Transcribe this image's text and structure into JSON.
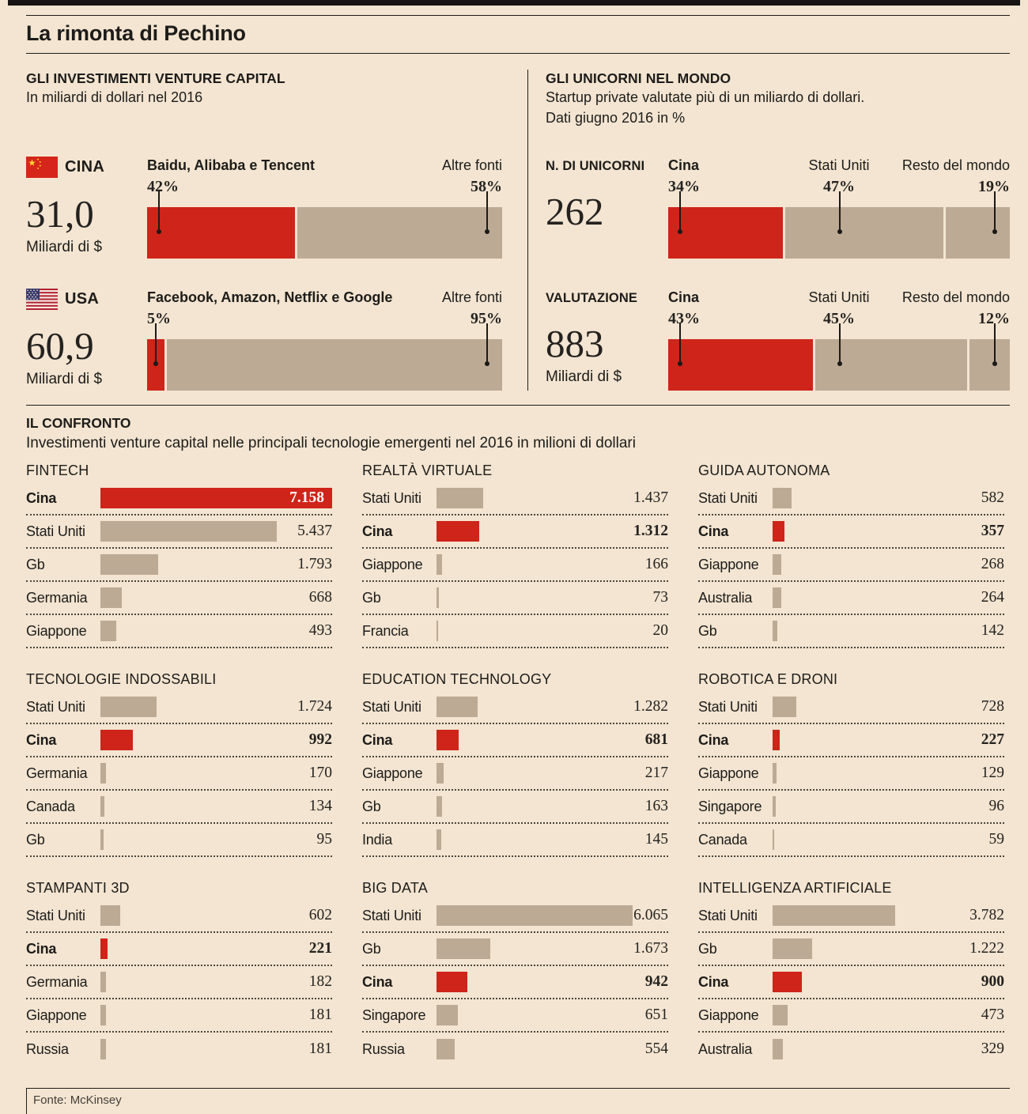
{
  "header": {
    "title": "La rimonta di Pechino"
  },
  "vc_panel": {
    "heading": "GLI INVESTIMENTI VENTURE CAPITAL",
    "subheading": "In miliardi di dollari nel 2016",
    "rows": [
      {
        "country": "CINA",
        "flag": "china-flag",
        "big": "31,0",
        "unit": "Miliardi di $",
        "seg1_name": "Baidu, Alibaba e Tencent",
        "seg1_pct": "42%",
        "seg1_num": 42,
        "seg2_name": "Altre fonti",
        "seg2_pct": "58%",
        "seg2_num": 58
      },
      {
        "country": "USA",
        "flag": "usa-flag",
        "big": "60,9",
        "unit": "Miliardi di $",
        "seg1_name": "Facebook, Amazon, Netflix e Google",
        "seg1_pct": "5%",
        "seg1_num": 5,
        "seg2_name": "Altre fonti",
        "seg2_pct": "95%",
        "seg2_num": 95
      }
    ]
  },
  "unicorn_panel": {
    "heading": "GLI UNICORNI NEL MONDO",
    "subheading1": "Startup private valutate più di un miliardo di dollari.",
    "subheading2": "Dati giugno 2016 in %",
    "rows": [
      {
        "caption": "N. DI UNICORNI",
        "big": "262",
        "unit": "",
        "seg1_name": "Cina",
        "seg1_pct": "34%",
        "seg1_num": 34,
        "seg2_name": "Stati Uniti",
        "seg2_pct": "47%",
        "seg2_num": 47,
        "seg3_name": "Resto del mondo",
        "seg3_pct": "19%",
        "seg3_num": 19
      },
      {
        "caption": "VALUTAZIONE",
        "big": "883",
        "unit": "Miliardi di $",
        "seg1_name": "Cina",
        "seg1_pct": "43%",
        "seg1_num": 43,
        "seg2_name": "Stati Uniti",
        "seg2_pct": "45%",
        "seg2_num": 45,
        "seg3_name": "Resto del mondo",
        "seg3_pct": "12%",
        "seg3_num": 12
      }
    ]
  },
  "confronto": {
    "heading": "IL CONFRONTO",
    "subheading": "Investimenti venture capital nelle principali tecnologie emergenti nel 2016 in milioni di dollari",
    "max_value": 7158,
    "charts": [
      {
        "title": "FINTECH",
        "rows": [
          {
            "label": "Cina",
            "value": "7.158",
            "num": 7158,
            "cina": true,
            "inside": true
          },
          {
            "label": "Stati Uniti",
            "value": "5.437",
            "num": 5437
          },
          {
            "label": "Gb",
            "value": "1.793",
            "num": 1793
          },
          {
            "label": "Germania",
            "value": "668",
            "num": 668
          },
          {
            "label": "Giappone",
            "value": "493",
            "num": 493
          }
        ]
      },
      {
        "title": "REALTÀ VIRTUALE",
        "rows": [
          {
            "label": "Stati Uniti",
            "value": "1.437",
            "num": 1437
          },
          {
            "label": "Cina",
            "value": "1.312",
            "num": 1312,
            "cina": true
          },
          {
            "label": "Giappone",
            "value": "166",
            "num": 166
          },
          {
            "label": "Gb",
            "value": "73",
            "num": 73
          },
          {
            "label": "Francia",
            "value": "20",
            "num": 20
          }
        ]
      },
      {
        "title": "GUIDA AUTONOMA",
        "rows": [
          {
            "label": "Stati Uniti",
            "value": "582",
            "num": 582
          },
          {
            "label": "Cina",
            "value": "357",
            "num": 357,
            "cina": true
          },
          {
            "label": "Giappone",
            "value": "268",
            "num": 268
          },
          {
            "label": "Australia",
            "value": "264",
            "num": 264
          },
          {
            "label": "Gb",
            "value": "142",
            "num": 142
          }
        ]
      },
      {
        "title": "TECNOLOGIE INDOSSABILI",
        "rows": [
          {
            "label": "Stati Uniti",
            "value": "1.724",
            "num": 1724
          },
          {
            "label": "Cina",
            "value": "992",
            "num": 992,
            "cina": true
          },
          {
            "label": "Germania",
            "value": "170",
            "num": 170
          },
          {
            "label": "Canada",
            "value": "134",
            "num": 134
          },
          {
            "label": "Gb",
            "value": "95",
            "num": 95
          }
        ]
      },
      {
        "title": "EDUCATION TECHNOLOGY",
        "rows": [
          {
            "label": "Stati Uniti",
            "value": "1.282",
            "num": 1282
          },
          {
            "label": "Cina",
            "value": "681",
            "num": 681,
            "cina": true
          },
          {
            "label": "Giappone",
            "value": "217",
            "num": 217
          },
          {
            "label": "Gb",
            "value": "163",
            "num": 163
          },
          {
            "label": "India",
            "value": "145",
            "num": 145
          }
        ]
      },
      {
        "title": "ROBOTICA E DRONI",
        "rows": [
          {
            "label": "Stati Uniti",
            "value": "728",
            "num": 728
          },
          {
            "label": "Cina",
            "value": "227",
            "num": 227,
            "cina": true
          },
          {
            "label": "Giappone",
            "value": "129",
            "num": 129
          },
          {
            "label": "Singapore",
            "value": "96",
            "num": 96
          },
          {
            "label": "Canada",
            "value": "59",
            "num": 59
          }
        ]
      },
      {
        "title": "STAMPANTI 3D",
        "rows": [
          {
            "label": "Stati Uniti",
            "value": "602",
            "num": 602
          },
          {
            "label": "Cina",
            "value": "221",
            "num": 221,
            "cina": true
          },
          {
            "label": "Germania",
            "value": "182",
            "num": 182
          },
          {
            "label": "Giappone",
            "value": "181",
            "num": 181
          },
          {
            "label": "Russia",
            "value": "181",
            "num": 181
          }
        ]
      },
      {
        "title": "BIG DATA",
        "rows": [
          {
            "label": "Stati Uniti",
            "value": "6.065",
            "num": 6065
          },
          {
            "label": "Gb",
            "value": "1.673",
            "num": 1673
          },
          {
            "label": "Cina",
            "value": "942",
            "num": 942,
            "cina": true
          },
          {
            "label": "Singapore",
            "value": "651",
            "num": 651
          },
          {
            "label": "Russia",
            "value": "554",
            "num": 554
          }
        ]
      },
      {
        "title": "INTELLIGENZA ARTIFICIALE",
        "rows": [
          {
            "label": "Stati Uniti",
            "value": "3.782",
            "num": 3782
          },
          {
            "label": "Gb",
            "value": "1.222",
            "num": 1222
          },
          {
            "label": "Cina",
            "value": "900",
            "num": 900,
            "cina": true
          },
          {
            "label": "Giappone",
            "value": "473",
            "num": 473
          },
          {
            "label": "Australia",
            "value": "329",
            "num": 329
          }
        ]
      }
    ]
  },
  "footer": {
    "source": "Fonte: McKinsey"
  },
  "colors": {
    "red": "#cf241a",
    "tan": "#bcaa94",
    "background": "#f3e5d1"
  },
  "chart_data": [
    {
      "type": "bar",
      "title": "GLI INVESTIMENTI VENTURE CAPITAL",
      "subtitle": "In miliardi di dollari nel 2016",
      "rows": [
        {
          "country": "CINA",
          "total_miliardi_dollari": 31.0,
          "segments": [
            {
              "label": "Baidu, Alibaba e Tencent",
              "pct": 42
            },
            {
              "label": "Altre fonti",
              "pct": 58
            }
          ]
        },
        {
          "country": "USA",
          "total_miliardi_dollari": 60.9,
          "segments": [
            {
              "label": "Facebook, Amazon, Netflix e Google",
              "pct": 5
            },
            {
              "label": "Altre fonti",
              "pct": 95
            }
          ]
        }
      ]
    },
    {
      "type": "bar",
      "title": "GLI UNICORNI NEL MONDO",
      "subtitle": "Startup private valutate più di un miliardo di dollari. Dati giugno 2016 in %",
      "rows": [
        {
          "label": "N. DI UNICORNI",
          "total": 262,
          "segments": [
            {
              "label": "Cina",
              "pct": 34
            },
            {
              "label": "Stati Uniti",
              "pct": 47
            },
            {
              "label": "Resto del mondo",
              "pct": 19
            }
          ]
        },
        {
          "label": "VALUTAZIONE",
          "total": 883,
          "unit": "Miliardi di $",
          "segments": [
            {
              "label": "Cina",
              "pct": 43
            },
            {
              "label": "Stati Uniti",
              "pct": 45
            },
            {
              "label": "Resto del mondo",
              "pct": 12
            }
          ]
        }
      ]
    },
    {
      "type": "bar",
      "title": "IL CONFRONTO",
      "subtitle": "Investimenti venture capital nelle principali tecnologie emergenti nel 2016 in milioni di dollari",
      "charts": [
        {
          "title": "FINTECH",
          "categories": [
            "Cina",
            "Stati Uniti",
            "Gb",
            "Germania",
            "Giappone"
          ],
          "values": [
            7158,
            5437,
            1793,
            668,
            493
          ]
        },
        {
          "title": "REALTÀ VIRTUALE",
          "categories": [
            "Stati Uniti",
            "Cina",
            "Giappone",
            "Gb",
            "Francia"
          ],
          "values": [
            1437,
            1312,
            166,
            73,
            20
          ]
        },
        {
          "title": "GUIDA AUTONOMA",
          "categories": [
            "Stati Uniti",
            "Cina",
            "Giappone",
            "Australia",
            "Gb"
          ],
          "values": [
            582,
            357,
            268,
            264,
            142
          ]
        },
        {
          "title": "TECNOLOGIE INDOSSABILI",
          "categories": [
            "Stati Uniti",
            "Cina",
            "Germania",
            "Canada",
            "Gb"
          ],
          "values": [
            1724,
            992,
            170,
            134,
            95
          ]
        },
        {
          "title": "EDUCATION TECHNOLOGY",
          "categories": [
            "Stati Uniti",
            "Cina",
            "Giappone",
            "Gb",
            "India"
          ],
          "values": [
            1282,
            681,
            217,
            163,
            145
          ]
        },
        {
          "title": "ROBOTICA E DRONI",
          "categories": [
            "Stati Uniti",
            "Cina",
            "Giappone",
            "Singapore",
            "Canada"
          ],
          "values": [
            728,
            227,
            129,
            96,
            59
          ]
        },
        {
          "title": "STAMPANTI 3D",
          "categories": [
            "Stati Uniti",
            "Cina",
            "Germania",
            "Giappone",
            "Russia"
          ],
          "values": [
            602,
            221,
            182,
            181,
            181
          ]
        },
        {
          "title": "BIG DATA",
          "categories": [
            "Stati Uniti",
            "Gb",
            "Cina",
            "Singapore",
            "Russia"
          ],
          "values": [
            6065,
            1673,
            942,
            651,
            554
          ]
        },
        {
          "title": "INTELLIGENZA ARTIFICIALE",
          "categories": [
            "Stati Uniti",
            "Gb",
            "Cina",
            "Giappone",
            "Australia"
          ],
          "values": [
            3782,
            1222,
            900,
            473,
            329
          ]
        }
      ],
      "source": "Fonte: McKinsey"
    }
  ]
}
